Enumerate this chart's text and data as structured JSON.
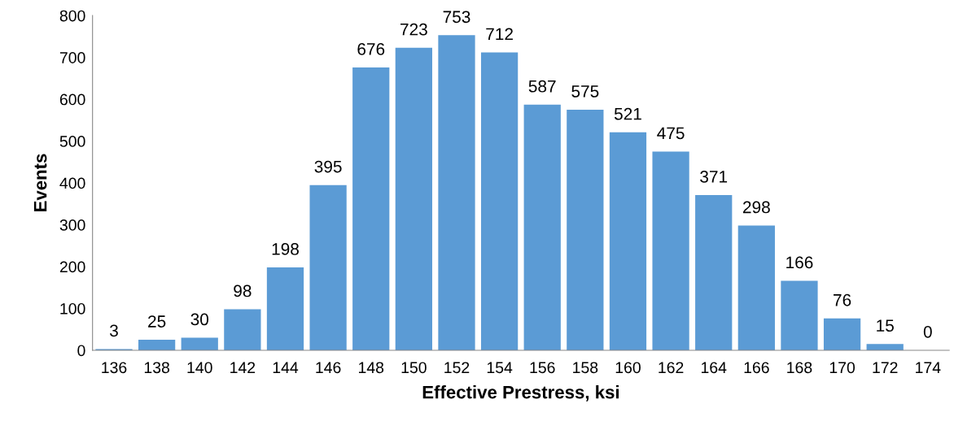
{
  "chart_data": {
    "type": "bar",
    "xlabel": "Effective Prestress, ksi",
    "ylabel": "Events",
    "categories": [
      "136",
      "138",
      "140",
      "142",
      "144",
      "146",
      "148",
      "150",
      "152",
      "154",
      "156",
      "158",
      "160",
      "162",
      "164",
      "166",
      "168",
      "170",
      "172",
      "174"
    ],
    "values": [
      3,
      25,
      30,
      98,
      198,
      395,
      676,
      723,
      753,
      712,
      587,
      575,
      521,
      475,
      371,
      298,
      166,
      76,
      15,
      0
    ],
    "color": "#5b9bd5",
    "ylim": [
      0,
      800
    ],
    "yticks": [
      0,
      100,
      200,
      300,
      400,
      500,
      600,
      700,
      800
    ],
    "data_labels": true,
    "grid": false,
    "legend": false
  }
}
